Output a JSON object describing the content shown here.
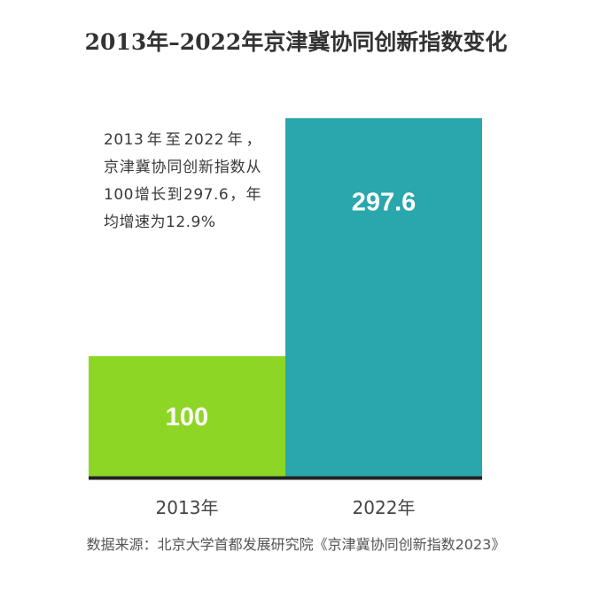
{
  "header": {
    "title": "2013年–2022年京津冀协同创新指数变化"
  },
  "annotation": {
    "text": "2013年至2022年，京津冀协同创新指数从100增长到297.6，年均增速为12.9%"
  },
  "footer": {
    "source": "数据来源：北京大学首都发展研究院《京津冀协同创新指数2023》"
  },
  "colors": {
    "bar_2013": "#8ed626",
    "bar_2022": "#2aa7ad",
    "axis": "#222222"
  },
  "chart_data": {
    "type": "bar",
    "title": "2013年–2022年京津冀协同创新指数变化",
    "categories": [
      "2013年",
      "2022年"
    ],
    "values": [
      100,
      297.6
    ],
    "value_labels": [
      "100",
      "297.6"
    ],
    "xlabel": "",
    "ylabel": "",
    "ylim": [
      0,
      300
    ],
    "grid": false,
    "legend": "none"
  }
}
